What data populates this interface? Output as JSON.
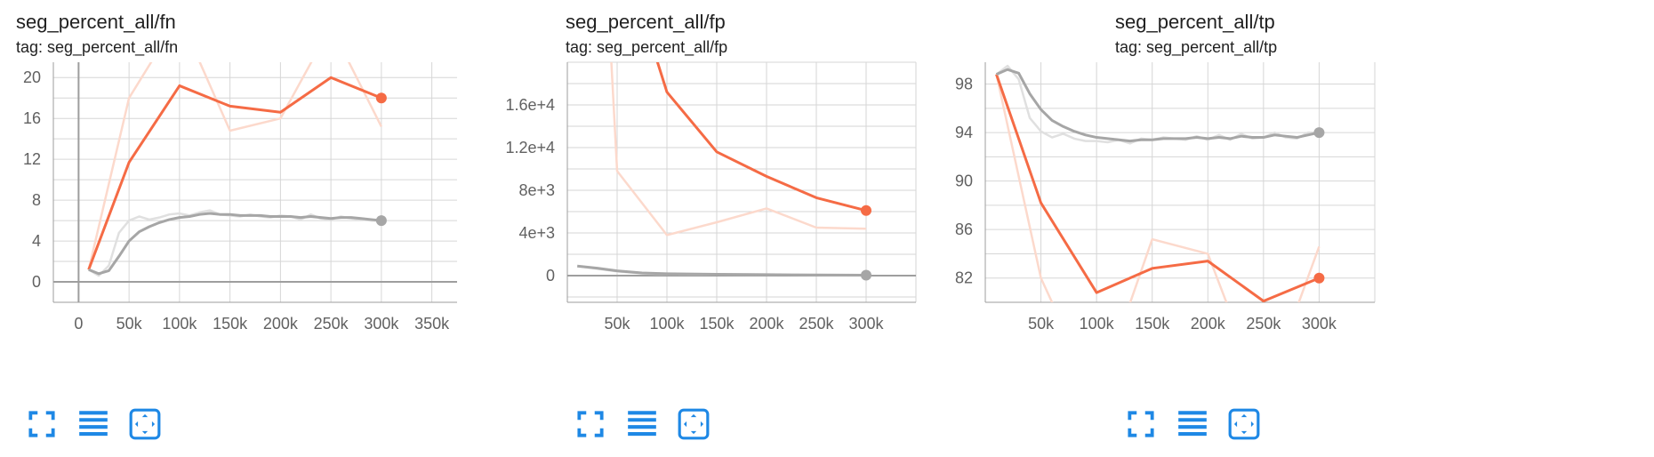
{
  "panels": [
    {
      "id": "fn",
      "title": "seg_percent_all/fn",
      "tag_line": "tag: seg_percent_all/fn",
      "toolbar": {
        "fullscreen_icon": "fullscreen-icon",
        "legend_icon": "legend-lines-icon",
        "fit_icon": "fit-domain-icon"
      }
    },
    {
      "id": "fp",
      "title": "seg_percent_all/fp",
      "tag_line": "tag: seg_percent_all/fp",
      "toolbar": {
        "fullscreen_icon": "fullscreen-icon",
        "legend_icon": "legend-lines-icon",
        "fit_icon": "fit-domain-icon"
      }
    },
    {
      "id": "tp",
      "title": "seg_percent_all/tp",
      "tag_line": "tag: seg_percent_all/tp",
      "toolbar": {
        "fullscreen_icon": "fullscreen-icon",
        "legend_icon": "legend-lines-icon",
        "fit_icon": "fit-domain-icon"
      }
    }
  ],
  "colors": {
    "orange": "#f56b45",
    "orange_raw": "#fcd9cc",
    "gray": "#a6a6a6",
    "gray_raw": "#e0e0e0",
    "grid": "#d6d6d6",
    "axis": "#9e9e9e",
    "icon_blue": "#1e88e5"
  },
  "chart_data": [
    {
      "type": "line",
      "title": "seg_percent_all/fn",
      "xlim": [
        -25000,
        375000
      ],
      "ylim": [
        -2,
        21.5
      ],
      "x_ticks": [
        0,
        50000,
        100000,
        150000,
        200000,
        250000,
        300000,
        350000
      ],
      "x_tick_labels": [
        "0",
        "50k",
        "100k",
        "150k",
        "200k",
        "250k",
        "300k",
        "350k"
      ],
      "y_ticks": [
        0,
        4,
        8,
        12,
        16,
        20
      ],
      "y_tick_labels": [
        "0",
        "4",
        "8",
        "12",
        "16",
        "20"
      ],
      "grid": true,
      "series": [
        {
          "color": "orange",
          "smoothed": {
            "x": [
              10000,
              50000,
              100000,
              150000,
              200000,
              250000,
              300000
            ],
            "y": [
              1.2,
              11.7,
              19.2,
              17.2,
              16.6,
              20.0,
              18.0
            ]
          },
          "raw": {
            "x": [
              10000,
              50000,
              100000,
              150000,
              200000,
              250000,
              300000
            ],
            "y": [
              1.2,
              18.0,
              26.0,
              14.8,
              16.0,
              25.0,
              15.2
            ]
          }
        },
        {
          "color": "gray",
          "smoothed": {
            "x": [
              10000,
              20000,
              30000,
              40000,
              50000,
              60000,
              70000,
              80000,
              90000,
              100000,
              110000,
              120000,
              130000,
              140000,
              150000,
              160000,
              170000,
              180000,
              190000,
              200000,
              210000,
              220000,
              230000,
              240000,
              250000,
              260000,
              270000,
              280000,
              290000,
              300000
            ],
            "y": [
              1.2,
              0.8,
              1.1,
              2.5,
              4.0,
              4.9,
              5.4,
              5.8,
              6.1,
              6.3,
              6.4,
              6.6,
              6.7,
              6.6,
              6.6,
              6.5,
              6.5,
              6.5,
              6.4,
              6.4,
              6.4,
              6.3,
              6.4,
              6.3,
              6.2,
              6.3,
              6.3,
              6.2,
              6.1,
              6.0
            ]
          },
          "raw": {
            "x": [
              10000,
              20000,
              30000,
              40000,
              50000,
              60000,
              70000,
              80000,
              90000,
              100000,
              110000,
              120000,
              130000,
              140000,
              150000,
              160000,
              170000,
              180000,
              190000,
              200000,
              210000,
              220000,
              230000,
              240000,
              250000,
              260000,
              270000,
              280000,
              290000,
              300000
            ],
            "y": [
              1.2,
              0.6,
              1.6,
              4.8,
              6.0,
              6.4,
              6.1,
              6.3,
              6.6,
              6.7,
              6.5,
              6.8,
              7.0,
              6.6,
              6.5,
              6.4,
              6.6,
              6.4,
              6.3,
              6.5,
              6.4,
              6.1,
              6.6,
              6.2,
              6.1,
              6.4,
              6.2,
              6.1,
              6.0,
              6.0
            ]
          }
        }
      ]
    },
    {
      "type": "line",
      "title": "seg_percent_all/fp",
      "xlim": [
        0,
        350000
      ],
      "ylim": [
        -2500,
        20000
      ],
      "x_ticks": [
        50000,
        100000,
        150000,
        200000,
        250000,
        300000
      ],
      "x_tick_labels": [
        "50k",
        "100k",
        "150k",
        "200k",
        "250k",
        "300k"
      ],
      "y_ticks": [
        0,
        4000,
        8000,
        12000,
        16000
      ],
      "y_tick_labels": [
        "0",
        "4e+3",
        "8e+3",
        "1.2e+4",
        "1.6e+4"
      ],
      "grid": true,
      "series": [
        {
          "color": "orange",
          "smoothed": {
            "x": [
              10000,
              50000,
              100000,
              150000,
              200000,
              250000,
              300000
            ],
            "y": [
              60000,
              32000,
              17200,
              11600,
              9300,
              7300,
              6100
            ]
          },
          "raw": {
            "x": [
              10000,
              50000,
              100000,
              150000,
              200000,
              250000,
              300000
            ],
            "y": [
              80000,
              9800,
              3800,
              5000,
              6300,
              4500,
              4400
            ]
          }
        },
        {
          "color": "gray",
          "smoothed": {
            "x": [
              10000,
              30000,
              50000,
              75000,
              100000,
              150000,
              200000,
              250000,
              300000
            ],
            "y": [
              900,
              700,
              450,
              250,
              180,
              120,
              90,
              60,
              40
            ]
          },
          "raw": {
            "x": [
              10000,
              30000,
              50000,
              75000,
              100000,
              150000,
              200000,
              250000,
              300000
            ],
            "y": [
              900,
              650,
              400,
              200,
              150,
              100,
              80,
              50,
              30
            ]
          }
        }
      ]
    },
    {
      "type": "line",
      "title": "seg_percent_all/tp",
      "xlim": [
        0,
        350000
      ],
      "ylim": [
        80,
        99.8
      ],
      "x_ticks": [
        50000,
        100000,
        150000,
        200000,
        250000,
        300000
      ],
      "x_tick_labels": [
        "50k",
        "100k",
        "150k",
        "200k",
        "250k",
        "300k"
      ],
      "y_ticks": [
        82,
        86,
        90,
        94,
        98
      ],
      "y_tick_labels": [
        "82",
        "86",
        "90",
        "94",
        "98"
      ],
      "grid": true,
      "series": [
        {
          "color": "orange",
          "smoothed": {
            "x": [
              10000,
              50000,
              100000,
              150000,
              200000,
              250000,
              300000
            ],
            "y": [
              98.8,
              88.2,
              80.8,
              82.8,
              83.4,
              80.1,
              82.0
            ]
          },
          "raw": {
            "x": [
              10000,
              50000,
              100000,
              150000,
              200000,
              250000,
              300000
            ],
            "y": [
              98.8,
              82.0,
              72.0,
              85.2,
              84.0,
              72.0,
              84.6
            ]
          }
        },
        {
          "color": "gray",
          "smoothed": {
            "x": [
              10000,
              20000,
              30000,
              40000,
              50000,
              60000,
              70000,
              80000,
              90000,
              100000,
              110000,
              120000,
              130000,
              140000,
              150000,
              160000,
              170000,
              180000,
              190000,
              200000,
              210000,
              220000,
              230000,
              240000,
              250000,
              260000,
              270000,
              280000,
              290000,
              300000
            ],
            "y": [
              98.8,
              99.2,
              98.9,
              97.2,
              95.9,
              95.0,
              94.5,
              94.1,
              93.8,
              93.6,
              93.5,
              93.4,
              93.3,
              93.4,
              93.4,
              93.5,
              93.5,
              93.5,
              93.6,
              93.5,
              93.6,
              93.5,
              93.7,
              93.6,
              93.6,
              93.8,
              93.7,
              93.6,
              93.8,
              94.0
            ]
          },
          "raw": {
            "x": [
              10000,
              20000,
              30000,
              40000,
              50000,
              60000,
              70000,
              80000,
              90000,
              100000,
              110000,
              120000,
              130000,
              140000,
              150000,
              160000,
              170000,
              180000,
              190000,
              200000,
              210000,
              220000,
              230000,
              240000,
              250000,
              260000,
              270000,
              280000,
              290000,
              300000
            ],
            "y": [
              98.8,
              99.5,
              98.4,
              95.2,
              94.1,
              93.6,
              93.9,
              93.5,
              93.3,
              93.3,
              93.2,
              93.4,
              93.1,
              93.5,
              93.4,
              93.6,
              93.5,
              93.4,
              93.7,
              93.4,
              93.8,
              93.4,
              93.9,
              93.5,
              93.6,
              94.0,
              93.6,
              93.5,
              94.0,
              94.0
            ]
          }
        }
      ]
    }
  ]
}
